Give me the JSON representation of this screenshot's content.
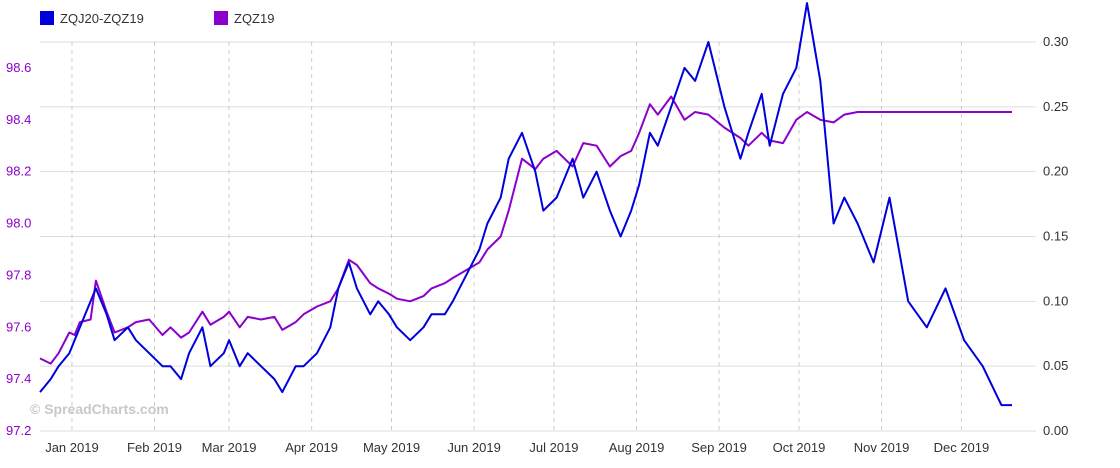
{
  "watermark": "© SpreadCharts.com",
  "colors": {
    "spread": "#0000dd",
    "outright": "#8b00cc",
    "left_axis_text": "#8b00cc",
    "right_axis_text": "#333333",
    "grid": "#dddddd",
    "vgrid": "#cccccc"
  },
  "chart_data": {
    "type": "line",
    "legend": {
      "placement": "top-left",
      "items": [
        "ZQJ20-ZQZ19",
        "ZQZ19"
      ]
    },
    "x_tick_labels": [
      "Jan 2019",
      "Feb 2019",
      "Mar 2019",
      "Apr 2019",
      "May 2019",
      "Jun 2019",
      "Jul 2019",
      "Aug 2019",
      "Sep 2019",
      "Oct 2019",
      "Nov 2019",
      "Dec 2019"
    ],
    "left_axis": {
      "series": "ZQZ19",
      "range": [
        97.2,
        98.7
      ],
      "ticks": [
        "97.2",
        "97.4",
        "97.6",
        "97.8",
        "98.0",
        "98.2",
        "98.4",
        "98.6"
      ]
    },
    "right_axis": {
      "series": "ZQJ20-ZQZ19",
      "range": [
        0.0,
        0.3
      ],
      "ticks": [
        "0.00",
        "0.05",
        "0.10",
        "0.15",
        "0.20",
        "0.25",
        "0.30"
      ]
    },
    "grid": true,
    "series": [
      {
        "name": "ZQZ19",
        "axis": "left",
        "points": [
          [
            "2018-12-20",
            97.48
          ],
          [
            "2018-12-24",
            97.46
          ],
          [
            "2018-12-27",
            97.5
          ],
          [
            "2018-12-31",
            97.58
          ],
          [
            "2019-01-02",
            97.57
          ],
          [
            "2019-01-04",
            97.62
          ],
          [
            "2019-01-08",
            97.63
          ],
          [
            "2019-01-10",
            97.78
          ],
          [
            "2019-01-14",
            97.66
          ],
          [
            "2019-01-17",
            97.58
          ],
          [
            "2019-01-22",
            97.6
          ],
          [
            "2019-01-25",
            97.62
          ],
          [
            "2019-01-30",
            97.63
          ],
          [
            "2019-02-04",
            97.57
          ],
          [
            "2019-02-07",
            97.6
          ],
          [
            "2019-02-11",
            97.56
          ],
          [
            "2019-02-14",
            97.58
          ],
          [
            "2019-02-19",
            97.66
          ],
          [
            "2019-02-22",
            97.61
          ],
          [
            "2019-02-27",
            97.64
          ],
          [
            "2019-03-01",
            97.66
          ],
          [
            "2019-03-05",
            97.6
          ],
          [
            "2019-03-08",
            97.64
          ],
          [
            "2019-03-13",
            97.63
          ],
          [
            "2019-03-18",
            97.64
          ],
          [
            "2019-03-21",
            97.59
          ],
          [
            "2019-03-26",
            97.62
          ],
          [
            "2019-03-29",
            97.65
          ],
          [
            "2019-04-03",
            97.68
          ],
          [
            "2019-04-08",
            97.7
          ],
          [
            "2019-04-11",
            97.75
          ],
          [
            "2019-04-15",
            97.86
          ],
          [
            "2019-04-18",
            97.84
          ],
          [
            "2019-04-23",
            97.77
          ],
          [
            "2019-04-26",
            97.75
          ],
          [
            "2019-04-30",
            97.73
          ],
          [
            "2019-05-03",
            97.71
          ],
          [
            "2019-05-08",
            97.7
          ],
          [
            "2019-05-13",
            97.72
          ],
          [
            "2019-05-16",
            97.75
          ],
          [
            "2019-05-21",
            97.77
          ],
          [
            "2019-05-24",
            97.79
          ],
          [
            "2019-05-29",
            97.82
          ],
          [
            "2019-06-03",
            97.85
          ],
          [
            "2019-06-06",
            97.9
          ],
          [
            "2019-06-11",
            97.95
          ],
          [
            "2019-06-14",
            98.05
          ],
          [
            "2019-06-19",
            98.25
          ],
          [
            "2019-06-24",
            98.21
          ],
          [
            "2019-06-27",
            98.25
          ],
          [
            "2019-07-02",
            98.28
          ],
          [
            "2019-07-08",
            98.22
          ],
          [
            "2019-07-12",
            98.31
          ],
          [
            "2019-07-17",
            98.3
          ],
          [
            "2019-07-22",
            98.22
          ],
          [
            "2019-07-26",
            98.26
          ],
          [
            "2019-07-30",
            98.28
          ],
          [
            "2019-08-02",
            98.35
          ],
          [
            "2019-08-06",
            98.46
          ],
          [
            "2019-08-09",
            98.42
          ],
          [
            "2019-08-14",
            98.49
          ],
          [
            "2019-08-19",
            98.4
          ],
          [
            "2019-08-23",
            98.43
          ],
          [
            "2019-08-28",
            98.42
          ],
          [
            "2019-09-03",
            98.37
          ],
          [
            "2019-09-09",
            98.33
          ],
          [
            "2019-09-12",
            98.3
          ],
          [
            "2019-09-17",
            98.35
          ],
          [
            "2019-09-20",
            98.32
          ],
          [
            "2019-09-25",
            98.31
          ],
          [
            "2019-09-30",
            98.4
          ],
          [
            "2019-10-04",
            98.43
          ],
          [
            "2019-10-09",
            98.4
          ],
          [
            "2019-10-14",
            98.39
          ],
          [
            "2019-10-18",
            98.42
          ],
          [
            "2019-10-23",
            98.43
          ],
          [
            "2019-10-29",
            98.43
          ],
          [
            "2019-11-04",
            98.43
          ],
          [
            "2019-11-11",
            98.43
          ],
          [
            "2019-11-18",
            98.43
          ],
          [
            "2019-11-25",
            98.43
          ],
          [
            "2019-12-02",
            98.43
          ],
          [
            "2019-12-09",
            98.43
          ],
          [
            "2019-12-16",
            98.43
          ],
          [
            "2019-12-20",
            98.43
          ]
        ]
      },
      {
        "name": "ZQJ20-ZQZ19",
        "axis": "right",
        "points": [
          [
            "2018-12-20",
            0.03
          ],
          [
            "2018-12-24",
            0.04
          ],
          [
            "2018-12-27",
            0.05
          ],
          [
            "2018-12-31",
            0.06
          ],
          [
            "2019-01-02",
            0.07
          ],
          [
            "2019-01-04",
            0.08
          ],
          [
            "2019-01-08",
            0.1
          ],
          [
            "2019-01-10",
            0.11
          ],
          [
            "2019-01-14",
            0.09
          ],
          [
            "2019-01-17",
            0.07
          ],
          [
            "2019-01-22",
            0.08
          ],
          [
            "2019-01-25",
            0.07
          ],
          [
            "2019-01-30",
            0.06
          ],
          [
            "2019-02-04",
            0.05
          ],
          [
            "2019-02-07",
            0.05
          ],
          [
            "2019-02-11",
            0.04
          ],
          [
            "2019-02-14",
            0.06
          ],
          [
            "2019-02-19",
            0.08
          ],
          [
            "2019-02-22",
            0.05
          ],
          [
            "2019-02-27",
            0.06
          ],
          [
            "2019-03-01",
            0.07
          ],
          [
            "2019-03-05",
            0.05
          ],
          [
            "2019-03-08",
            0.06
          ],
          [
            "2019-03-13",
            0.05
          ],
          [
            "2019-03-18",
            0.04
          ],
          [
            "2019-03-21",
            0.03
          ],
          [
            "2019-03-26",
            0.05
          ],
          [
            "2019-03-29",
            0.05
          ],
          [
            "2019-04-03",
            0.06
          ],
          [
            "2019-04-08",
            0.08
          ],
          [
            "2019-04-11",
            0.11
          ],
          [
            "2019-04-15",
            0.13
          ],
          [
            "2019-04-18",
            0.11
          ],
          [
            "2019-04-23",
            0.09
          ],
          [
            "2019-04-26",
            0.1
          ],
          [
            "2019-04-30",
            0.09
          ],
          [
            "2019-05-03",
            0.08
          ],
          [
            "2019-05-08",
            0.07
          ],
          [
            "2019-05-13",
            0.08
          ],
          [
            "2019-05-16",
            0.09
          ],
          [
            "2019-05-21",
            0.09
          ],
          [
            "2019-05-24",
            0.1
          ],
          [
            "2019-05-29",
            0.12
          ],
          [
            "2019-06-03",
            0.14
          ],
          [
            "2019-06-06",
            0.16
          ],
          [
            "2019-06-11",
            0.18
          ],
          [
            "2019-06-14",
            0.21
          ],
          [
            "2019-06-19",
            0.23
          ],
          [
            "2019-06-24",
            0.2
          ],
          [
            "2019-06-27",
            0.17
          ],
          [
            "2019-07-02",
            0.18
          ],
          [
            "2019-07-08",
            0.21
          ],
          [
            "2019-07-12",
            0.18
          ],
          [
            "2019-07-17",
            0.2
          ],
          [
            "2019-07-22",
            0.17
          ],
          [
            "2019-07-26",
            0.15
          ],
          [
            "2019-07-30",
            0.17
          ],
          [
            "2019-08-02",
            0.19
          ],
          [
            "2019-08-06",
            0.23
          ],
          [
            "2019-08-09",
            0.22
          ],
          [
            "2019-08-14",
            0.25
          ],
          [
            "2019-08-19",
            0.28
          ],
          [
            "2019-08-23",
            0.27
          ],
          [
            "2019-08-28",
            0.3
          ],
          [
            "2019-09-03",
            0.25
          ],
          [
            "2019-09-09",
            0.21
          ],
          [
            "2019-09-12",
            0.23
          ],
          [
            "2019-09-17",
            0.26
          ],
          [
            "2019-09-20",
            0.22
          ],
          [
            "2019-09-25",
            0.26
          ],
          [
            "2019-09-30",
            0.28
          ],
          [
            "2019-10-04",
            0.33
          ],
          [
            "2019-10-09",
            0.27
          ],
          [
            "2019-10-14",
            0.16
          ],
          [
            "2019-10-18",
            0.18
          ],
          [
            "2019-10-23",
            0.16
          ],
          [
            "2019-10-29",
            0.13
          ],
          [
            "2019-11-04",
            0.18
          ],
          [
            "2019-11-11",
            0.1
          ],
          [
            "2019-11-18",
            0.08
          ],
          [
            "2019-11-25",
            0.11
          ],
          [
            "2019-12-02",
            0.07
          ],
          [
            "2019-12-09",
            0.05
          ],
          [
            "2019-12-16",
            0.02
          ],
          [
            "2019-12-20",
            0.02
          ]
        ]
      }
    ]
  }
}
